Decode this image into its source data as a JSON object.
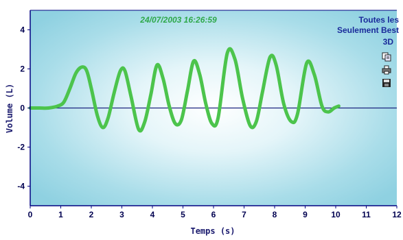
{
  "chart_data": {
    "type": "line",
    "timestamp": "24/07/2003 16:26:59",
    "xlabel": "Temps (s)",
    "ylabel": "Volume (L)",
    "xlim": [
      0,
      12
    ],
    "ylim": [
      -5,
      5
    ],
    "x_ticks": [
      0,
      1,
      2,
      3,
      4,
      5,
      6,
      7,
      8,
      9,
      10,
      11,
      12
    ],
    "y_ticks": [
      -4,
      -2,
      0,
      2,
      4
    ],
    "grid": false,
    "zero_line": true,
    "line_color": "#4cc44c",
    "axis_color": "#000080",
    "series": [
      {
        "x": [
          0,
          0.3,
          0.6,
          0.9,
          1.1,
          1.3,
          1.5,
          1.7,
          1.85,
          2.0,
          2.2,
          2.38,
          2.55,
          2.75,
          2.95,
          3.1,
          3.3,
          3.55,
          3.75,
          3.95,
          4.15,
          4.35,
          4.55,
          4.75,
          4.95,
          5.15,
          5.35,
          5.55,
          5.75,
          5.95,
          6.15,
          6.45,
          6.7,
          6.95,
          7.2,
          7.4,
          7.6,
          7.85,
          8.05,
          8.3,
          8.55,
          8.75,
          9.05,
          9.3,
          9.55,
          9.75,
          9.95,
          10.1
        ],
        "y": [
          0,
          0,
          0,
          0.1,
          0.3,
          1.0,
          1.8,
          2.1,
          1.9,
          1.0,
          -0.4,
          -1.0,
          -0.5,
          0.8,
          1.9,
          1.9,
          0.6,
          -1.1,
          -0.7,
          0.7,
          2.2,
          1.5,
          0.1,
          -0.8,
          -0.6,
          0.9,
          2.4,
          1.7,
          0.2,
          -0.8,
          -0.5,
          2.8,
          2.5,
          0.5,
          -0.9,
          -0.7,
          0.8,
          2.6,
          2.2,
          0.2,
          -0.7,
          -0.3,
          2.3,
          1.7,
          0.1,
          -0.2,
          0.0,
          0.1
        ]
      }
    ]
  },
  "side_menu": {
    "toutes_label": "Toutes les",
    "seulement_label": "Seulement Best",
    "mode_3d_label": "3D"
  },
  "icons": {
    "copy": "copy-icon",
    "print": "printer-icon",
    "save": "floppy-disk-icon"
  }
}
